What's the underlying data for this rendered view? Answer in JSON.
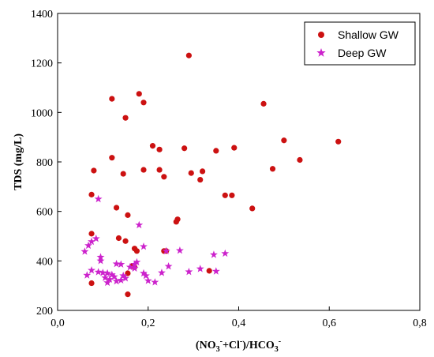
{
  "chart_data": {
    "type": "scatter",
    "xlabel": {
      "open": "(NO",
      "s1": "3",
      "sup1": "-",
      "mid": "+Cl",
      "sup2": "-",
      "close": ")/HCO",
      "s2": "3",
      "sup3": "-"
    },
    "ylabel": "TDS (mg/L)",
    "xlim": [
      0.0,
      0.8
    ],
    "ylim": [
      200,
      1400
    ],
    "xticks": [
      "0,0",
      "0,2",
      "0,4",
      "0,6",
      "0,8"
    ],
    "yticks": [
      "200",
      "400",
      "600",
      "800",
      "1000",
      "1200",
      "1400"
    ],
    "legend_position": "top-right",
    "series": [
      {
        "name": "Shallow GW",
        "marker": "circle",
        "color": "#cc1111",
        "points": [
          [
            0.29,
            1230
          ],
          [
            0.12,
            1055
          ],
          [
            0.18,
            1075
          ],
          [
            0.19,
            1040
          ],
          [
            0.15,
            978
          ],
          [
            0.455,
            1035
          ],
          [
            0.21,
            865
          ],
          [
            0.225,
            850
          ],
          [
            0.28,
            855
          ],
          [
            0.5,
            887
          ],
          [
            0.62,
            882
          ],
          [
            0.12,
            817
          ],
          [
            0.08,
            765
          ],
          [
            0.145,
            752
          ],
          [
            0.19,
            768
          ],
          [
            0.225,
            768
          ],
          [
            0.235,
            740
          ],
          [
            0.295,
            755
          ],
          [
            0.32,
            762
          ],
          [
            0.315,
            728
          ],
          [
            0.35,
            845
          ],
          [
            0.39,
            857
          ],
          [
            0.475,
            772
          ],
          [
            0.535,
            808
          ],
          [
            0.075,
            668
          ],
          [
            0.37,
            665
          ],
          [
            0.385,
            665
          ],
          [
            0.265,
            568
          ],
          [
            0.262,
            558
          ],
          [
            0.13,
            615
          ],
          [
            0.155,
            585
          ],
          [
            0.43,
            612
          ],
          [
            0.075,
            510
          ],
          [
            0.135,
            492
          ],
          [
            0.15,
            480
          ],
          [
            0.17,
            450
          ],
          [
            0.175,
            440
          ],
          [
            0.235,
            440
          ],
          [
            0.24,
            440
          ],
          [
            0.17,
            375
          ],
          [
            0.165,
            380
          ],
          [
            0.335,
            360
          ],
          [
            0.155,
            350
          ],
          [
            0.075,
            310
          ],
          [
            0.155,
            265
          ]
        ]
      },
      {
        "name": "Deep GW",
        "marker": "star",
        "color": "#cc22cc",
        "points": [
          [
            0.09,
            650
          ],
          [
            0.18,
            545
          ],
          [
            0.085,
            490
          ],
          [
            0.075,
            478
          ],
          [
            0.068,
            462
          ],
          [
            0.06,
            438
          ],
          [
            0.19,
            458
          ],
          [
            0.24,
            440
          ],
          [
            0.27,
            442
          ],
          [
            0.345,
            425
          ],
          [
            0.37,
            430
          ],
          [
            0.095,
            415
          ],
          [
            0.095,
            400
          ],
          [
            0.13,
            388
          ],
          [
            0.14,
            386
          ],
          [
            0.17,
            386
          ],
          [
            0.175,
            395
          ],
          [
            0.16,
            375
          ],
          [
            0.17,
            370
          ],
          [
            0.245,
            378
          ],
          [
            0.075,
            362
          ],
          [
            0.09,
            355
          ],
          [
            0.1,
            352
          ],
          [
            0.11,
            350
          ],
          [
            0.12,
            344
          ],
          [
            0.125,
            336
          ],
          [
            0.145,
            340
          ],
          [
            0.19,
            350
          ],
          [
            0.195,
            340
          ],
          [
            0.23,
            352
          ],
          [
            0.29,
            356
          ],
          [
            0.315,
            368
          ],
          [
            0.35,
            358
          ],
          [
            0.065,
            342
          ],
          [
            0.105,
            332
          ],
          [
            0.115,
            325
          ],
          [
            0.13,
            318
          ],
          [
            0.14,
            322
          ],
          [
            0.15,
            330
          ],
          [
            0.2,
            320
          ],
          [
            0.215,
            314
          ],
          [
            0.11,
            312
          ]
        ]
      }
    ]
  }
}
